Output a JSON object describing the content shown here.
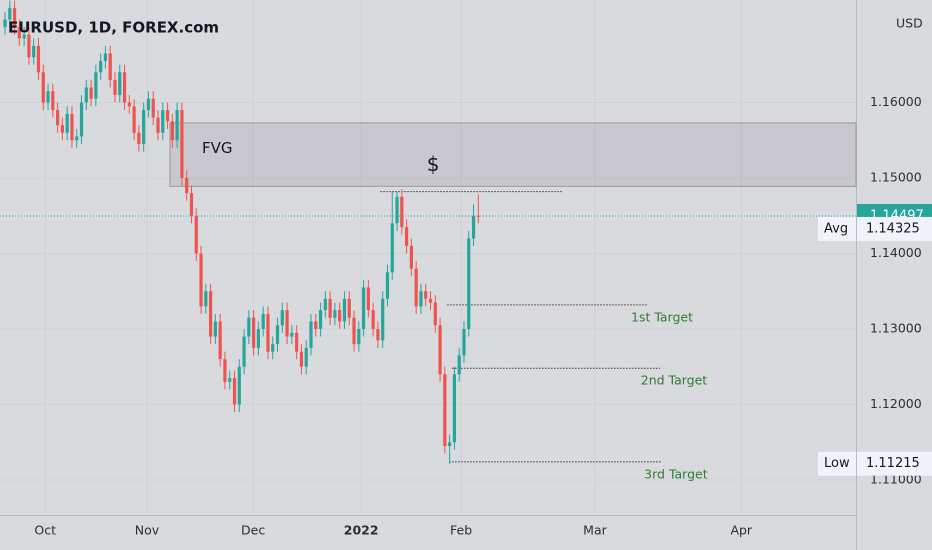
{
  "chart_data": {
    "type": "candlestick",
    "title": "EURUSD, 1D, FOREX.com",
    "currency": "USD",
    "up_color": "#26a69a",
    "down_color": "#ef5350",
    "open": [
      1.17,
      1.171,
      1.1725,
      1.17,
      1.1685,
      1.169,
      1.166,
      1.1675,
      1.164,
      1.16,
      1.1615,
      1.159,
      1.157,
      1.156,
      1.1585,
      1.155,
      1.1555,
      1.16,
      1.162,
      1.1605,
      1.164,
      1.1655,
      1.1665,
      1.163,
      1.161,
      1.164,
      1.16,
      1.1595,
      1.156,
      1.1545,
      1.159,
      1.1605,
      1.158,
      1.156,
      1.159,
      1.1575,
      1.155,
      1.159,
      1.15,
      1.148,
      1.145,
      1.14,
      1.133,
      1.135,
      1.129,
      1.131,
      1.126,
      1.123,
      1.1235,
      1.12,
      1.125,
      1.129,
      1.1315,
      1.1275,
      1.13,
      1.132,
      1.127,
      1.128,
      1.1305,
      1.1325,
      1.129,
      1.1295,
      1.127,
      1.125,
      1.1275,
      1.131,
      1.13,
      1.1325,
      1.134,
      1.1315,
      1.1325,
      1.131,
      1.134,
      1.1315,
      1.128,
      1.13,
      1.1355,
      1.1325,
      1.13,
      1.1285,
      1.134,
      1.1375,
      1.144,
      1.1475,
      1.1435,
      1.141,
      1.138,
      1.133,
      1.135,
      1.134,
      1.1335,
      1.1305,
      1.124,
      1.1145,
      1.115,
      1.124,
      1.1265,
      1.13,
      1.142,
      1.145
    ],
    "high": [
      1.172,
      1.1735,
      1.1735,
      1.171,
      1.17,
      1.17,
      1.1685,
      1.1685,
      1.165,
      1.1625,
      1.1625,
      1.16,
      1.158,
      1.1595,
      1.1595,
      1.1565,
      1.161,
      1.163,
      1.163,
      1.165,
      1.1665,
      1.1675,
      1.1675,
      1.164,
      1.165,
      1.165,
      1.161,
      1.1605,
      1.157,
      1.16,
      1.1615,
      1.1615,
      1.159,
      1.16,
      1.16,
      1.1585,
      1.16,
      1.16,
      1.151,
      1.149,
      1.146,
      1.141,
      1.136,
      1.136,
      1.132,
      1.132,
      1.127,
      1.1245,
      1.1245,
      1.126,
      1.13,
      1.1325,
      1.1325,
      1.131,
      1.133,
      1.133,
      1.129,
      1.1315,
      1.1335,
      1.1335,
      1.1305,
      1.1305,
      1.128,
      1.1285,
      1.132,
      1.132,
      1.1335,
      1.135,
      1.135,
      1.1335,
      1.1335,
      1.135,
      1.135,
      1.1325,
      1.131,
      1.1365,
      1.1365,
      1.1335,
      1.131,
      1.135,
      1.1385,
      1.1482,
      1.1482,
      1.1485,
      1.1445,
      1.142,
      1.139,
      1.136,
      1.136,
      1.135,
      1.1345,
      1.1315,
      1.125,
      1.116,
      1.125,
      1.1275,
      1.131,
      1.143,
      1.1465,
      1.1478
    ],
    "low": [
      1.169,
      1.17,
      1.169,
      1.1675,
      1.1675,
      1.165,
      1.165,
      1.163,
      1.159,
      1.159,
      1.158,
      1.156,
      1.155,
      1.155,
      1.154,
      1.154,
      1.1545,
      1.159,
      1.1595,
      1.1595,
      1.163,
      1.1645,
      1.162,
      1.16,
      1.16,
      1.159,
      1.1585,
      1.155,
      1.1535,
      1.1535,
      1.158,
      1.157,
      1.155,
      1.155,
      1.1565,
      1.154,
      1.154,
      1.149,
      1.147,
      1.144,
      1.139,
      1.132,
      1.132,
      1.128,
      1.128,
      1.125,
      1.122,
      1.122,
      1.119,
      1.119,
      1.124,
      1.128,
      1.1265,
      1.1265,
      1.129,
      1.126,
      1.126,
      1.127,
      1.1295,
      1.128,
      1.128,
      1.126,
      1.124,
      1.124,
      1.1265,
      1.129,
      1.129,
      1.1315,
      1.1305,
      1.1305,
      1.13,
      1.13,
      1.1305,
      1.127,
      1.127,
      1.129,
      1.1315,
      1.129,
      1.1275,
      1.1275,
      1.133,
      1.1365,
      1.143,
      1.1425,
      1.14,
      1.137,
      1.132,
      1.132,
      1.133,
      1.1325,
      1.1295,
      1.123,
      1.1135,
      1.11215,
      1.114,
      1.123,
      1.1255,
      1.129,
      1.141,
      1.144
    ],
    "close": [
      1.171,
      1.1725,
      1.17,
      1.1685,
      1.169,
      1.166,
      1.1675,
      1.164,
      1.16,
      1.1615,
      1.159,
      1.157,
      1.156,
      1.1585,
      1.155,
      1.1555,
      1.16,
      1.162,
      1.1605,
      1.164,
      1.1655,
      1.1665,
      1.163,
      1.161,
      1.164,
      1.16,
      1.1595,
      1.156,
      1.1545,
      1.159,
      1.1605,
      1.158,
      1.156,
      1.159,
      1.1575,
      1.155,
      1.159,
      1.15,
      1.148,
      1.145,
      1.14,
      1.133,
      1.135,
      1.129,
      1.131,
      1.126,
      1.123,
      1.1235,
      1.12,
      1.125,
      1.129,
      1.1315,
      1.1275,
      1.13,
      1.132,
      1.127,
      1.128,
      1.1305,
      1.1325,
      1.129,
      1.1295,
      1.127,
      1.125,
      1.1275,
      1.131,
      1.13,
      1.1325,
      1.134,
      1.1315,
      1.1325,
      1.131,
      1.134,
      1.1315,
      1.128,
      1.13,
      1.1355,
      1.1325,
      1.13,
      1.1285,
      1.134,
      1.1375,
      1.144,
      1.1475,
      1.1435,
      1.141,
      1.138,
      1.133,
      1.135,
      1.134,
      1.1335,
      1.1305,
      1.124,
      1.1145,
      1.115,
      1.124,
      1.1265,
      1.13,
      1.142,
      1.145,
      1.14497
    ],
    "xlim": [
      -1.05,
      178
    ],
    "xticks": [
      {
        "value": 8.4,
        "label": "Oct"
      },
      {
        "value": 29.7,
        "label": "Nov"
      },
      {
        "value": 51.9,
        "label": "Dec"
      },
      {
        "value": 74.5,
        "label": "2022"
      },
      {
        "value": 95.4,
        "label": "Feb"
      },
      {
        "value": 123.4,
        "label": "Mar"
      },
      {
        "value": 154,
        "label": "Apr"
      }
    ],
    "ylim": [
      1.10536,
      1.17358
    ],
    "yticks": [
      {
        "value": 1.16,
        "label": "1.16000"
      },
      {
        "value": 1.15,
        "label": "1.15000"
      },
      {
        "value": 1.14,
        "label": "1.14000"
      },
      {
        "value": 1.13,
        "label": "1.13000"
      },
      {
        "value": 1.12,
        "label": "1.12000"
      },
      {
        "value": 1.11,
        "label": "1.11000"
      }
    ],
    "zone": {
      "label": "FVG",
      "top": 1.1573,
      "bottom": 1.1489,
      "from": 34.5
    },
    "levels": [
      {
        "label": "$",
        "price": 1.1482,
        "from": 78.5,
        "to": 116.5
      },
      {
        "label": "1st Target",
        "price": 1.1332,
        "from": 92.5,
        "to": 134.5
      },
      {
        "label": "2nd Target",
        "price": 1.1248,
        "from": 93.5,
        "to": 137
      },
      {
        "label": "3rd Target",
        "price": 1.1124,
        "from": 92.9,
        "to": 137.4
      }
    ],
    "last_price": {
      "value": 1.14497,
      "label": "1.14497"
    },
    "avg": {
      "name": "Avg",
      "value": 1.14325,
      "label": "1.14325"
    },
    "low_marker": {
      "name": "Low",
      "value": 1.11215,
      "label": "1.11215"
    }
  }
}
